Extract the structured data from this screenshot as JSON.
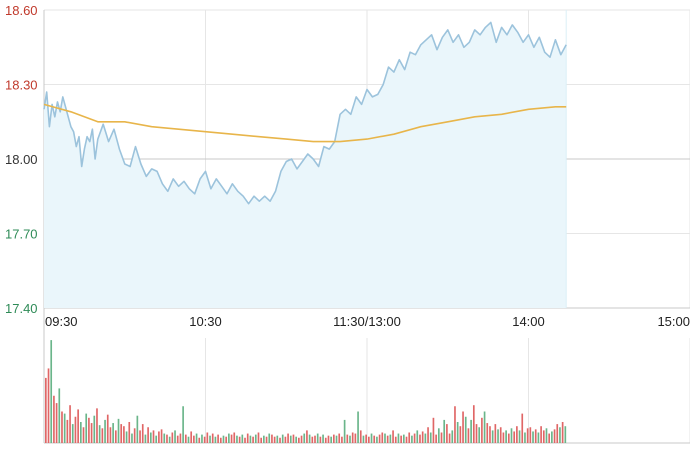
{
  "chart_data": {
    "type": "line",
    "y_ticks": [
      "18.60",
      "18.30",
      "18.00",
      "17.70",
      "17.40"
    ],
    "ylim": [
      17.4,
      18.6
    ],
    "baseline": 18.0,
    "x_ticks": [
      "09:30",
      "10:30",
      "11:30/13:00",
      "14:00",
      "15:00"
    ],
    "session_minutes": 240,
    "grid": true,
    "colors": {
      "price_line": "#9cc3dc",
      "price_fill": "#eaf6fb",
      "avg_line": "#e8b54a",
      "up": "#e06666",
      "down": "#6ab58a",
      "grid": "#e6e6e6",
      "axis": "#c8c8c8",
      "tick_up": "#c0392b",
      "tick_down": "#2e8b57",
      "tick_flat": "#333333"
    },
    "series": [
      {
        "key": "price",
        "t": [
          0,
          1,
          2,
          3,
          4,
          5,
          6,
          7,
          8,
          9,
          10,
          11,
          12,
          13,
          14,
          15,
          16,
          17,
          18,
          19,
          20,
          22,
          24,
          26,
          28,
          30,
          32,
          34,
          36,
          38,
          40,
          42,
          44,
          46,
          48,
          50,
          52,
          54,
          56,
          58,
          60,
          62,
          64,
          66,
          68,
          70,
          72,
          74,
          76,
          78,
          80,
          82,
          84,
          86,
          88,
          90,
          92,
          94,
          96,
          98,
          100,
          102,
          104,
          106,
          108,
          110,
          112,
          114,
          116,
          118,
          120,
          122,
          124,
          126,
          128,
          130,
          132,
          134,
          136,
          138,
          140,
          142,
          144,
          146,
          148,
          150,
          152,
          154,
          156,
          158,
          160,
          162,
          164,
          166,
          168,
          170,
          172,
          174,
          176,
          178,
          180,
          182,
          184,
          186,
          188,
          190,
          192,
          194,
          196,
          198,
          200,
          202,
          204,
          206,
          208,
          210,
          212,
          214,
          216,
          218,
          220,
          222,
          224,
          226,
          228,
          230,
          232,
          234,
          236,
          238,
          240
        ],
        "values": [
          18.2,
          18.27,
          18.13,
          18.22,
          18.17,
          18.23,
          18.19,
          18.25,
          18.21,
          18.17,
          18.13,
          18.11,
          18.05,
          18.09,
          17.97,
          18.04,
          18.09,
          18.07,
          18.12,
          18.0,
          18.08,
          18.14,
          18.07,
          18.12,
          18.04,
          17.98,
          17.97,
          18.05,
          17.98,
          17.93,
          17.96,
          17.95,
          17.9,
          17.87,
          17.92,
          17.89,
          17.91,
          17.88,
          17.86,
          17.92,
          17.95,
          17.88,
          17.92,
          17.89,
          17.86,
          17.9,
          17.87,
          17.85,
          17.82,
          17.85,
          17.83,
          17.85,
          17.83,
          17.87,
          17.95,
          17.99,
          18.0,
          17.96,
          17.99,
          18.02,
          18.0,
          17.97,
          18.05,
          18.04,
          18.07,
          18.18,
          18.2,
          18.18,
          18.25,
          18.22,
          18.28,
          18.25,
          18.26,
          18.3,
          18.37,
          18.35,
          18.4,
          18.36,
          18.43,
          18.42,
          18.46,
          18.48,
          18.5,
          18.44,
          18.49,
          18.52,
          18.47,
          18.5,
          18.45,
          18.47,
          18.52,
          18.5,
          18.53,
          18.55,
          18.47,
          18.53,
          18.5,
          18.54,
          18.51,
          18.47,
          18.5,
          18.45,
          18.49,
          18.43,
          18.41,
          18.48,
          18.42,
          18.46,
          18.52,
          18.57,
          18.55,
          18.52,
          18.5,
          18.56,
          18.53,
          18.46,
          18.5,
          18.43,
          18.48,
          18.51,
          18.52,
          18.5,
          18.55,
          18.52,
          18.49,
          18.45,
          18.41,
          18.43,
          18.45,
          18.42,
          18.45
        ],
        "valid_until_minute": 194
      },
      {
        "key": "average",
        "t": [
          0,
          10,
          20,
          30,
          40,
          50,
          60,
          70,
          80,
          90,
          100,
          110,
          120,
          130,
          140,
          150,
          160,
          170,
          180,
          190,
          194
        ],
        "values": [
          18.22,
          18.19,
          18.15,
          18.15,
          18.13,
          18.12,
          18.11,
          18.1,
          18.09,
          18.08,
          18.07,
          18.07,
          18.08,
          18.1,
          18.13,
          18.15,
          18.17,
          18.18,
          18.2,
          18.21,
          18.21
        ]
      }
    ],
    "volume": {
      "ymax": 100,
      "values": [
        62,
        71,
        98,
        45,
        38,
        52,
        30,
        28,
        22,
        36,
        18,
        25,
        32,
        20,
        15,
        28,
        24,
        19,
        26,
        33,
        17,
        14,
        22,
        27,
        15,
        19,
        12,
        23,
        18,
        16,
        11,
        20,
        9,
        14,
        26,
        12,
        18,
        8,
        15,
        10,
        12,
        7,
        11,
        13,
        9,
        8,
        6,
        10,
        12,
        7,
        9,
        35,
        8,
        6,
        11,
        7,
        9,
        5,
        8,
        6,
        10,
        7,
        9,
        6,
        8,
        5,
        7,
        6,
        9,
        8,
        10,
        7,
        6,
        8,
        5,
        9,
        7,
        6,
        8,
        10,
        5,
        7,
        6,
        9,
        8,
        6,
        7,
        5,
        8,
        6,
        9,
        7,
        8,
        6,
        5,
        7,
        9,
        12,
        8,
        6,
        7,
        9,
        6,
        8,
        5,
        7,
        6,
        8,
        7,
        9,
        6,
        22,
        8,
        7,
        10,
        9,
        30,
        12,
        7,
        8,
        6,
        9,
        7,
        6,
        8,
        10,
        9,
        7,
        8,
        12,
        6,
        9,
        7,
        8,
        6,
        10,
        7,
        9,
        12,
        8,
        11,
        9,
        15,
        10,
        24,
        8,
        14,
        10,
        22,
        18,
        9,
        12,
        35,
        20,
        16,
        30,
        25,
        14,
        22,
        36,
        18,
        15,
        24,
        30,
        19,
        16,
        12,
        18,
        13,
        15,
        10,
        12,
        9,
        14,
        11,
        16,
        12,
        28,
        10,
        14,
        15,
        11,
        13,
        10,
        16,
        12,
        14,
        9,
        11,
        13,
        18,
        15,
        20,
        16
      ],
      "directions": [
        "u",
        "u",
        "d",
        "u",
        "u",
        "d",
        "u",
        "d",
        "u",
        "u",
        "d",
        "u",
        "u",
        "d",
        "u",
        "d",
        "u",
        "u",
        "d",
        "u",
        "d",
        "u",
        "d",
        "u",
        "u",
        "d",
        "u",
        "d",
        "u",
        "u",
        "d",
        "u",
        "d",
        "u",
        "d",
        "u",
        "u",
        "d",
        "u",
        "d",
        "u",
        "d",
        "u",
        "u",
        "d",
        "u",
        "d",
        "u",
        "d",
        "u",
        "u",
        "d",
        "u",
        "d",
        "u",
        "u",
        "d",
        "u",
        "d",
        "u",
        "u",
        "d",
        "u",
        "d",
        "u",
        "u",
        "d",
        "u",
        "d",
        "u",
        "u",
        "d",
        "u",
        "d",
        "u",
        "u",
        "d",
        "u",
        "d",
        "u",
        "u",
        "d",
        "u",
        "d",
        "u",
        "u",
        "d",
        "u",
        "d",
        "u",
        "u",
        "d",
        "u",
        "d",
        "u",
        "u",
        "d",
        "u",
        "d",
        "u",
        "u",
        "d",
        "u",
        "d",
        "u",
        "u",
        "d",
        "u",
        "d",
        "u",
        "u",
        "d",
        "u",
        "d",
        "u",
        "u",
        "d",
        "u",
        "d",
        "u",
        "u",
        "d",
        "u",
        "d",
        "u",
        "u",
        "d",
        "u",
        "d",
        "u",
        "u",
        "d",
        "u",
        "d",
        "u",
        "u",
        "d",
        "u",
        "d",
        "u",
        "u",
        "d",
        "u",
        "d",
        "u",
        "u",
        "d",
        "u",
        "d",
        "u",
        "u",
        "d",
        "u",
        "d",
        "u",
        "u",
        "d",
        "u",
        "d",
        "u",
        "u",
        "d",
        "u",
        "d",
        "u",
        "u",
        "d",
        "u",
        "d",
        "u",
        "u",
        "d",
        "u",
        "d",
        "u",
        "u",
        "d",
        "u",
        "d",
        "u",
        "u",
        "d",
        "u",
        "d",
        "u",
        "u",
        "d",
        "u",
        "d",
        "u",
        "u",
        "d",
        "u",
        "d",
        "u",
        "u"
      ]
    }
  }
}
